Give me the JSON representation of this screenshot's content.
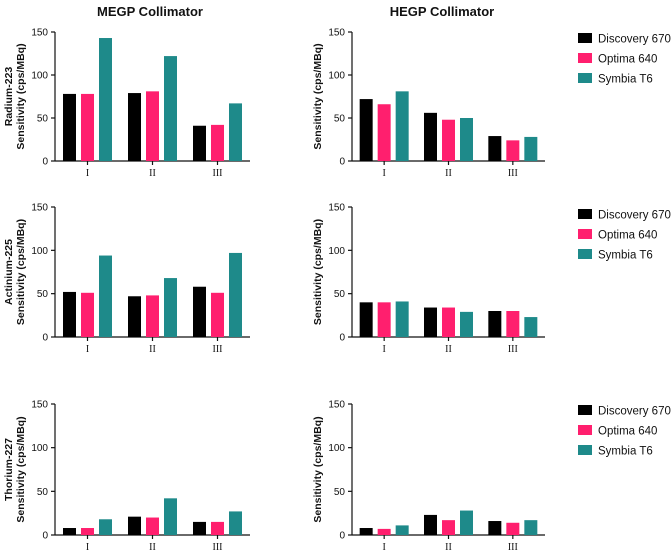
{
  "columns": [
    "MEGP Collimator",
    "HEGP Collimator"
  ],
  "colors": {
    "Discovery 670": "#000000",
    "Optima 640": "#ff1f6e",
    "Symbia T6": "#1e8a8a"
  },
  "chart_data": [
    {
      "type": "bar",
      "title": "MEGP Collimator",
      "row_label": "Radium-223",
      "ylabel": "Sensitivity (cps/MBq)",
      "categories": [
        "I",
        "II",
        "III"
      ],
      "ylim": [
        0,
        150
      ],
      "yticks": [
        0,
        50,
        100,
        150
      ],
      "series": [
        {
          "name": "Discovery 670",
          "values": [
            78,
            79,
            41
          ]
        },
        {
          "name": "Optima 640",
          "values": [
            78,
            81,
            42
          ]
        },
        {
          "name": "Symbia T6",
          "values": [
            143,
            122,
            67
          ]
        }
      ]
    },
    {
      "type": "bar",
      "title": "HEGP Collimator",
      "row_label": "",
      "ylabel": "Sensitivity (cps/MBq)",
      "categories": [
        "I",
        "II",
        "III"
      ],
      "ylim": [
        0,
        150
      ],
      "yticks": [
        0,
        50,
        100,
        150
      ],
      "legend": [
        "Discovery 670",
        "Optima 640",
        "Symbia T6"
      ],
      "series": [
        {
          "name": "Discovery 670",
          "values": [
            72,
            56,
            29
          ]
        },
        {
          "name": "Optima 640",
          "values": [
            66,
            48,
            24
          ]
        },
        {
          "name": "Symbia T6",
          "values": [
            81,
            50,
            28
          ]
        }
      ]
    },
    {
      "type": "bar",
      "title": "",
      "row_label": "Actinium-225",
      "ylabel": "Sensitivity (cps/MBq)",
      "categories": [
        "I",
        "II",
        "III"
      ],
      "ylim": [
        0,
        150
      ],
      "yticks": [
        0,
        50,
        100,
        150
      ],
      "series": [
        {
          "name": "Discovery 670",
          "values": [
            52,
            47,
            58
          ]
        },
        {
          "name": "Optima 640",
          "values": [
            51,
            48,
            51
          ]
        },
        {
          "name": "Symbia T6",
          "values": [
            94,
            68,
            97
          ]
        }
      ]
    },
    {
      "type": "bar",
      "title": "",
      "row_label": "",
      "ylabel": "Sensitivity (cps/MBq)",
      "categories": [
        "I",
        "II",
        "III"
      ],
      "ylim": [
        0,
        150
      ],
      "yticks": [
        0,
        50,
        100,
        150
      ],
      "legend": [
        "Discovery 670",
        "Optima 640",
        "Symbia T6"
      ],
      "series": [
        {
          "name": "Discovery 670",
          "values": [
            40,
            34,
            30
          ]
        },
        {
          "name": "Optima 640",
          "values": [
            40,
            34,
            30
          ]
        },
        {
          "name": "Symbia T6",
          "values": [
            41,
            29,
            23
          ]
        }
      ]
    },
    {
      "type": "bar",
      "title": "",
      "row_label": "Thorium-227",
      "ylabel": "Sensitivity (cps/MBq)",
      "categories": [
        "I",
        "II",
        "III"
      ],
      "ylim": [
        0,
        150
      ],
      "yticks": [
        0,
        50,
        100,
        150
      ],
      "series": [
        {
          "name": "Discovery 670",
          "values": [
            8,
            21,
            15
          ]
        },
        {
          "name": "Optima 640",
          "values": [
            8,
            20,
            15
          ]
        },
        {
          "name": "Symbia T6",
          "values": [
            18,
            42,
            27
          ]
        }
      ]
    },
    {
      "type": "bar",
      "title": "",
      "row_label": "",
      "ylabel": "Sensitivity (cps/MBq)",
      "categories": [
        "I",
        "II",
        "III"
      ],
      "ylim": [
        0,
        150
      ],
      "yticks": [
        0,
        50,
        100,
        150
      ],
      "legend": [
        "Discovery 670",
        "Optima 640",
        "Symbia T6"
      ],
      "series": [
        {
          "name": "Discovery 670",
          "values": [
            8,
            23,
            16
          ]
        },
        {
          "name": "Optima 640",
          "values": [
            7,
            17,
            14
          ]
        },
        {
          "name": "Symbia T6",
          "values": [
            11,
            28,
            17
          ]
        }
      ]
    }
  ]
}
